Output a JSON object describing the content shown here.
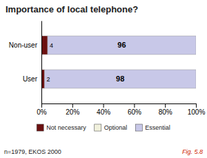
{
  "chart_data": {
    "type": "bar",
    "title": "Importance of local telephone?",
    "orientation": "horizontal",
    "stacked": true,
    "categories": [
      "Non-user",
      "User"
    ],
    "series": [
      {
        "name": "Not necessary",
        "color": "#6B1010",
        "values": [
          4,
          2
        ]
      },
      {
        "name": "Optional",
        "color": "#F0F0DC",
        "values": [
          0,
          0
        ]
      },
      {
        "name": "Essential",
        "color": "#C8C8E8",
        "values": [
          96,
          98
        ]
      }
    ],
    "xlim": [
      0,
      100
    ],
    "xticks": [
      {
        "value": 0,
        "label": "0%"
      },
      {
        "value": 20,
        "label": "20%"
      },
      {
        "value": 40,
        "label": "40%"
      },
      {
        "value": 60,
        "label": "60%"
      },
      {
        "value": 80,
        "label": "80%"
      },
      {
        "value": 100,
        "label": "100%"
      }
    ],
    "grid": false,
    "legend": "bottom",
    "data_labels": true,
    "annotations": [
      {
        "text": "n=1979, EKOS 2000"
      },
      {
        "text": "Fig. 5.8",
        "color": "#CC2200"
      }
    ]
  }
}
